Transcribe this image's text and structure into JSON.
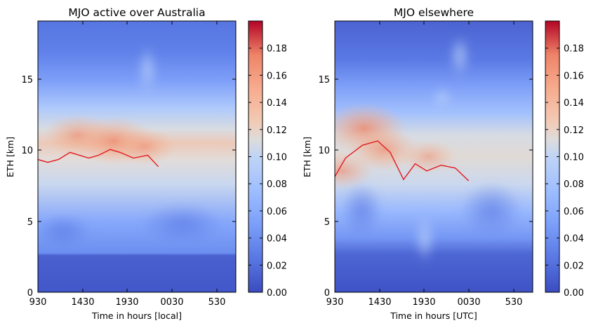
{
  "chart_data": [
    {
      "type": "heatmap",
      "title": "MJO active over Australia",
      "xlabel": "Time in hours [local]",
      "ylabel": "ETH [km]",
      "x_tick_labels": [
        "930",
        "1430",
        "1930",
        "0030",
        "530"
      ],
      "y_tick_labels": [
        "0",
        "5",
        "10",
        "15"
      ],
      "ylim": [
        0,
        19
      ],
      "colormap": "coolwarm",
      "colorbar": {
        "min": 0.0,
        "max": 0.2,
        "tick_labels": [
          "0.00",
          "0.02",
          "0.04",
          "0.06",
          "0.08",
          "0.10",
          "0.12",
          "0.14",
          "0.16",
          "0.18"
        ]
      },
      "line": {
        "color": "#e41a1c",
        "x_hours": [
          0,
          1.1,
          2.3,
          3.6,
          5.7,
          6.8,
          8.1,
          9.2,
          10.7,
          12.3,
          13.5
        ],
        "y": [
          9.3,
          9.1,
          9.3,
          9.8,
          9.4,
          9.6,
          10.0,
          9.8,
          9.4,
          9.6,
          8.8
        ]
      },
      "hotspots": [
        {
          "x_hours": 4.5,
          "y": 11.0,
          "value": 0.14
        },
        {
          "x_hours": 8.5,
          "y": 10.6,
          "value": 0.155
        },
        {
          "x_hours": 12.0,
          "y": 10.2,
          "value": 0.13
        }
      ]
    },
    {
      "type": "heatmap",
      "title": "MJO elsewhere",
      "xlabel": "Time in hours [UTC]",
      "ylabel": "ETH [km]",
      "x_tick_labels": [
        "930",
        "1430",
        "1930",
        "0030",
        "530"
      ],
      "y_tick_labels": [
        "0",
        "5",
        "10",
        "15"
      ],
      "ylim": [
        0,
        19
      ],
      "colormap": "coolwarm",
      "colorbar": {
        "min": 0.0,
        "max": 0.2,
        "tick_labels": [
          "0.00",
          "0.02",
          "0.04",
          "0.06",
          "0.08",
          "0.10",
          "0.12",
          "0.14",
          "0.16",
          "0.18"
        ]
      },
      "line": {
        "color": "#e41a1c",
        "x_hours": [
          0,
          1.2,
          3.1,
          4.8,
          6.2,
          7.7,
          9.0,
          10.3,
          11.9,
          13.5,
          15.0
        ],
        "y": [
          8.1,
          9.4,
          10.3,
          10.6,
          9.8,
          7.9,
          9.0,
          8.5,
          8.9,
          8.7,
          7.8
        ]
      },
      "hotspots": [
        {
          "x_hours": 3.3,
          "y": 11.5,
          "value": 0.16
        },
        {
          "x_hours": 5.5,
          "y": 10.0,
          "value": 0.14
        },
        {
          "x_hours": 0.8,
          "y": 8.5,
          "value": 0.13
        },
        {
          "x_hours": 10.5,
          "y": 9.5,
          "value": 0.12
        }
      ]
    }
  ]
}
